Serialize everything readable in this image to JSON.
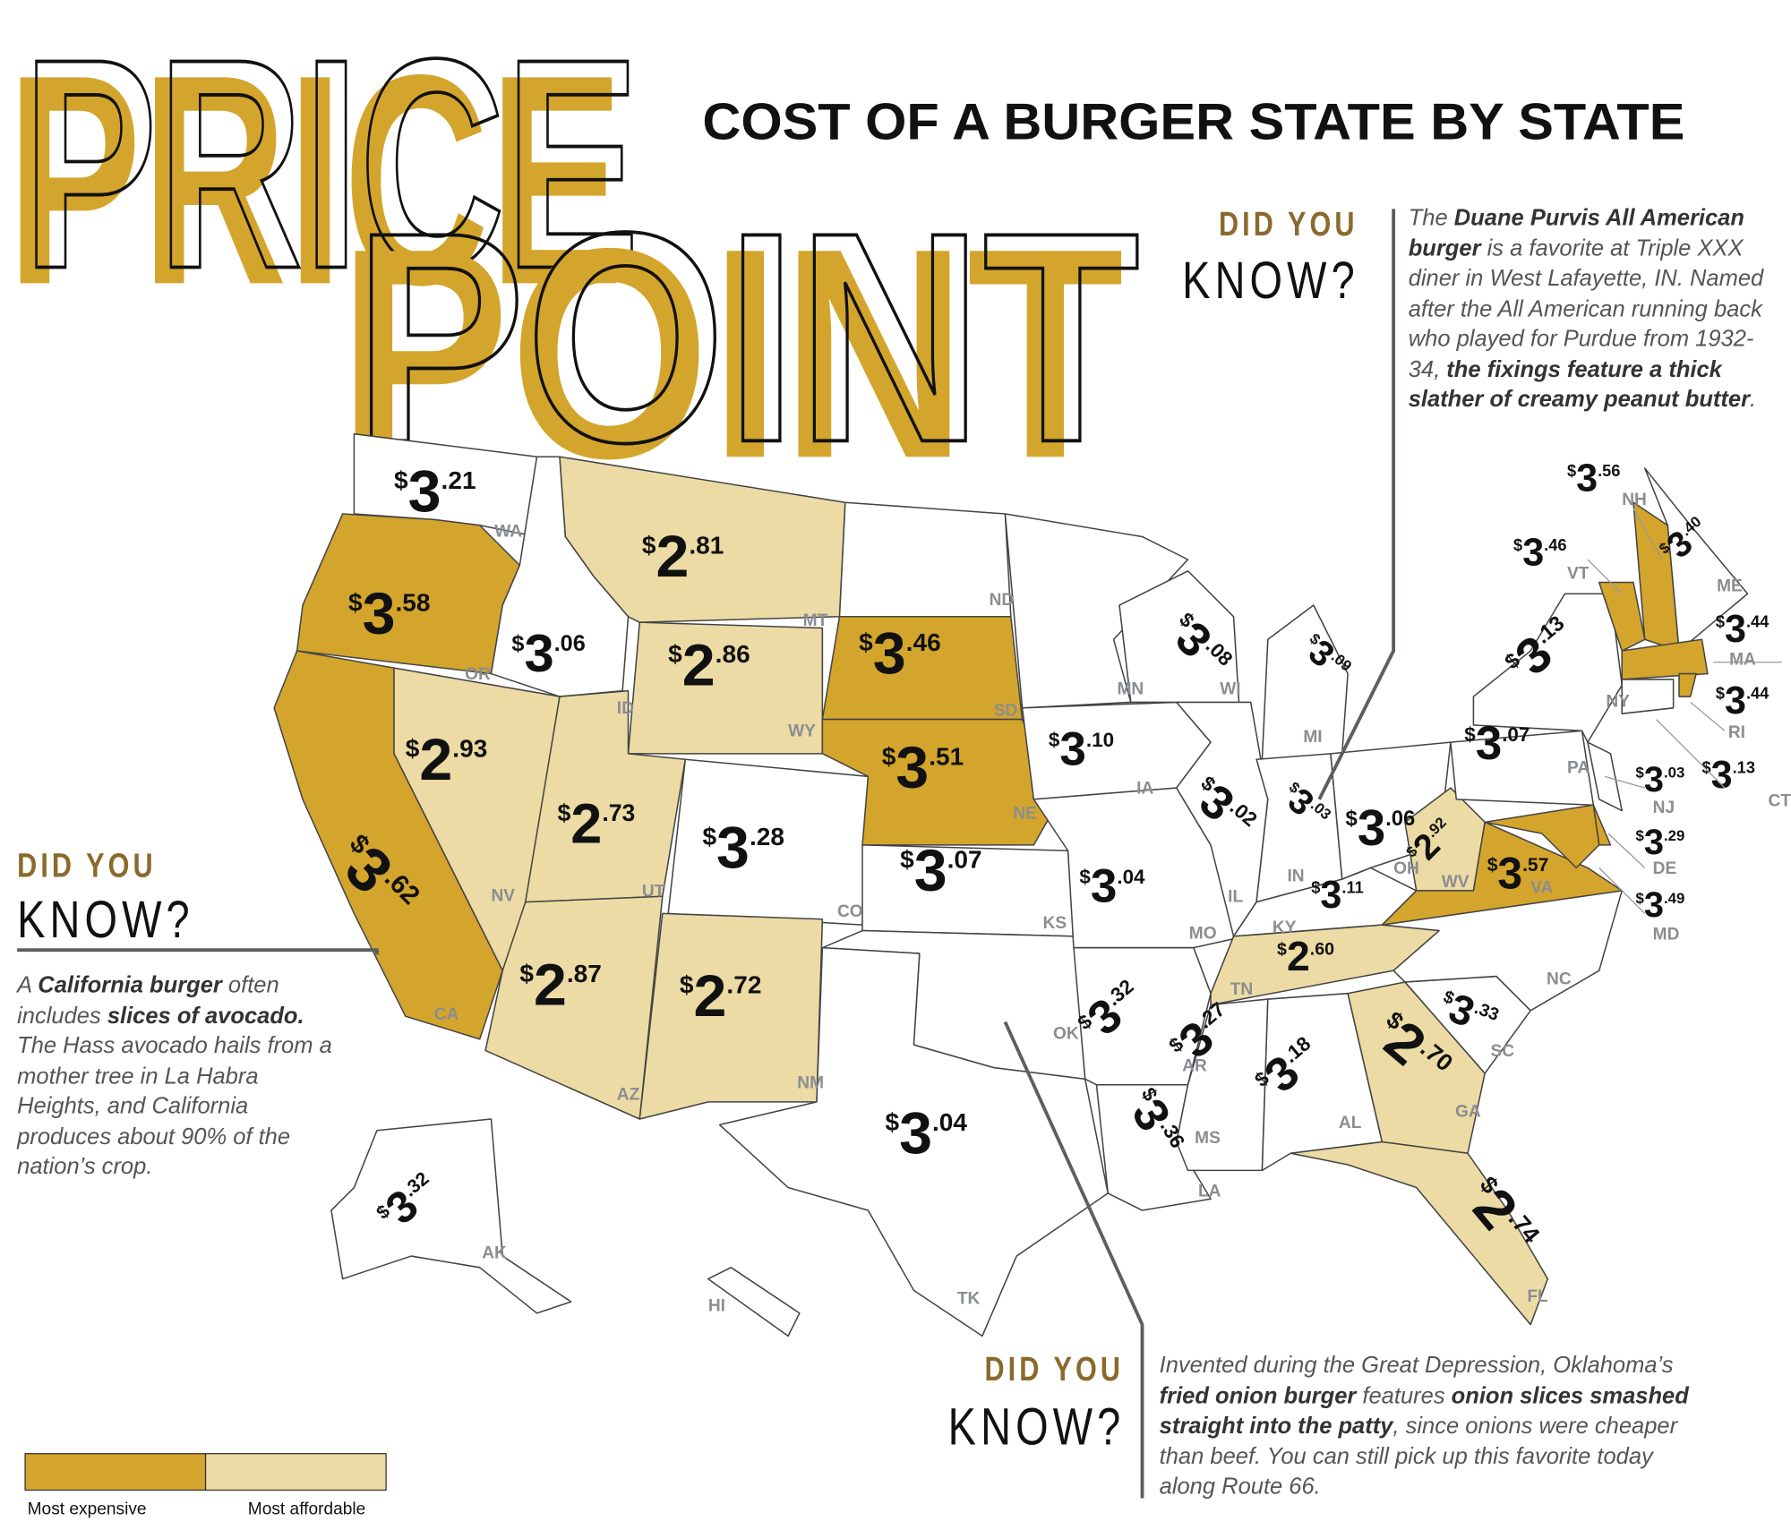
{
  "header": {
    "title_words": [
      "PRICE",
      "POINT"
    ],
    "subtitle": "COST OF A BURGER STATE BY STATE"
  },
  "states": [
    {
      "abbr": "WA",
      "price": "$3.21",
      "color": "#ffffff"
    },
    {
      "abbr": "OR",
      "price": "$3.58",
      "color": "#d4a52c"
    },
    {
      "abbr": "CA",
      "price": "$3.62",
      "color": "#d4a52c"
    },
    {
      "abbr": "ID",
      "price": "$3.06",
      "color": "#ffffff"
    },
    {
      "abbr": "NV",
      "price": "$2.93",
      "color": "#ecdba4"
    },
    {
      "abbr": "MT",
      "price": "$2.81",
      "color": "#ecdba4"
    },
    {
      "abbr": "WY",
      "price": "$2.86",
      "color": "#ecdba4"
    },
    {
      "abbr": "UT",
      "price": "$2.73",
      "color": "#ecdba4"
    },
    {
      "abbr": "CO",
      "price": "$3.28",
      "color": "#ffffff"
    },
    {
      "abbr": "AZ",
      "price": "$2.87",
      "color": "#ecdba4"
    },
    {
      "abbr": "NM",
      "price": "$2.72",
      "color": "#ecdba4"
    },
    {
      "abbr": "ND",
      "color": "#ffffff"
    },
    {
      "abbr": "SD",
      "price": "$3.46",
      "color": "#d4a52c"
    },
    {
      "abbr": "NE",
      "price": "$3.51",
      "color": "#d4a52c"
    },
    {
      "abbr": "KS",
      "price": "$3.07",
      "color": "#ffffff"
    },
    {
      "abbr": "OK",
      "color": "#ffffff"
    },
    {
      "abbr": "TK",
      "price": "$3.04",
      "color": "#ffffff"
    },
    {
      "abbr": "MN",
      "color": "#ffffff"
    },
    {
      "abbr": "IA",
      "price": "$3.10",
      "color": "#ffffff"
    },
    {
      "abbr": "MO",
      "price": "$3.04",
      "color": "#ffffff"
    },
    {
      "abbr": "AR",
      "price": "$3.32",
      "color": "#ffffff"
    },
    {
      "abbr": "LA",
      "price": "$3.36",
      "color": "#ffffff"
    },
    {
      "abbr": "WI",
      "price": "$3.08",
      "color": "#ffffff"
    },
    {
      "abbr": "IL",
      "price": "$3.02",
      "color": "#ffffff"
    },
    {
      "abbr": "MI",
      "price": "$3.09",
      "color": "#ffffff"
    },
    {
      "abbr": "IN",
      "price": "$3.03",
      "color": "#ffffff"
    },
    {
      "abbr": "OH",
      "price": "$3.06",
      "color": "#ffffff"
    },
    {
      "abbr": "KY",
      "price": "$3.11",
      "color": "#ffffff"
    },
    {
      "abbr": "TN",
      "price": "$2.60",
      "color": "#ecdba4"
    },
    {
      "abbr": "MS",
      "price": "$3.27",
      "color": "#ffffff"
    },
    {
      "abbr": "AL",
      "price": "$3.18",
      "color": "#ffffff"
    },
    {
      "abbr": "GA",
      "price": "$2.70",
      "color": "#ecdba4"
    },
    {
      "abbr": "FL",
      "price": "$2.74",
      "color": "#ecdba4"
    },
    {
      "abbr": "SC",
      "price": "$3.33",
      "color": "#ffffff"
    },
    {
      "abbr": "NC",
      "color": "#ffffff"
    },
    {
      "abbr": "WV",
      "price": "$2.92",
      "color": "#ecdba4"
    },
    {
      "abbr": "VA",
      "price": "$3.57",
      "color": "#d4a52c"
    },
    {
      "abbr": "PA",
      "price": "$3.07",
      "color": "#ffffff"
    },
    {
      "abbr": "NY",
      "price": "$3.13",
      "color": "#ffffff"
    },
    {
      "abbr": "ME",
      "price": "$3.40",
      "color": "#ffffff"
    },
    {
      "abbr": "NH",
      "price": "$3.56",
      "color": "#d4a52c"
    },
    {
      "abbr": "VT",
      "price": "$3.46",
      "color": "#d4a52c"
    },
    {
      "abbr": "MA",
      "price": "$3.44",
      "color": "#d4a52c"
    },
    {
      "abbr": "RI",
      "price": "$3.44",
      "color": "#d4a52c"
    },
    {
      "abbr": "CT",
      "price": "$3.13",
      "color": "#ffffff"
    },
    {
      "abbr": "NJ",
      "price": "$3.03",
      "color": "#ffffff"
    },
    {
      "abbr": "DE",
      "price": "$3.29",
      "color": "#d4a52c"
    },
    {
      "abbr": "MD",
      "price": "$3.49",
      "color": "#d4a52c"
    },
    {
      "abbr": "AK",
      "price": "$3.32",
      "color": "#ffffff"
    },
    {
      "abbr": "HI",
      "color": "#ffffff"
    }
  ],
  "callouts": [
    {
      "heading": [
        "DID YOU",
        "KNOW?"
      ],
      "text": [
        {
          "text": "The "
        },
        {
          "text": "Duane Purvis All American burger",
          "bold": true
        },
        {
          "text": " is a favorite at Triple XXX diner in West Lafayette, IN. Named after the All American running back who played for Purdue from 1932-34, "
        },
        {
          "text": "the fixings feature a thick slather of creamy peanut butter",
          "bold": true
        },
        {
          "text": "."
        }
      ]
    },
    {
      "heading": [
        "DID YOU",
        "KNOW?"
      ],
      "text": [
        {
          "text": "A "
        },
        {
          "text": "California burger",
          "bold": true
        },
        {
          "text": " often includes "
        },
        {
          "text": "slices of avocado.",
          "bold": true
        },
        {
          "text": " The Hass avocado hails from a mother tree in La Habra Heights, and California produces about 90% of the nation’s crop."
        }
      ]
    },
    {
      "heading": [
        "DID YOU",
        "KNOW?"
      ],
      "text": [
        {
          "text": "Invented during the Great Depression, Oklahoma’s "
        },
        {
          "text": "fried onion burger",
          "bold": true
        },
        {
          "text": " features "
        },
        {
          "text": "onion slices smashed straight into the patty",
          "bold": true
        },
        {
          "text": ", since onions were cheaper than beef. You can still pick up this favorite today along Route 66."
        }
      ]
    }
  ],
  "legend": [
    {
      "label": "Most expensive",
      "color": "#d4a52c"
    },
    {
      "label": "Most affordable",
      "color": "#ecdba4"
    }
  ]
}
